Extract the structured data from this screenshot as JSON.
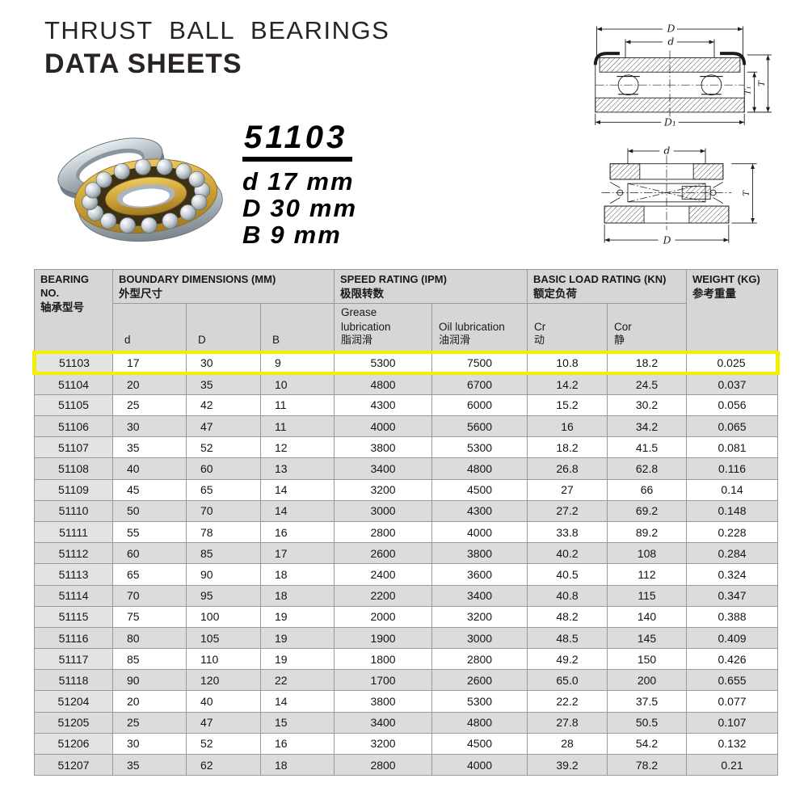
{
  "header": {
    "line1": "THRUST BALL BEARINGS",
    "line2": "DATA SHEETS"
  },
  "product": {
    "model": "51103",
    "dims": [
      {
        "label": "d",
        "value": "17",
        "unit": "mm"
      },
      {
        "label": "D",
        "value": "30",
        "unit": "mm"
      },
      {
        "label": "B",
        "value": "9",
        "unit": "mm"
      }
    ]
  },
  "drawings": {
    "view1": {
      "labels": {
        "D": "D",
        "d": "d",
        "T1": "T₁",
        "T": "T",
        "D1": "D₁"
      }
    },
    "view2": {
      "labels": {
        "d": "d",
        "D": "D",
        "T": "T"
      }
    }
  },
  "table": {
    "header": {
      "bearing_no": {
        "en": "BEARING NO.",
        "zh": "轴承型号"
      },
      "boundary": {
        "en": "BOUNDARY DIMENSIONS (MM)",
        "zh": "外型尺寸",
        "sub": [
          "d",
          "D",
          "B"
        ]
      },
      "speed": {
        "en": "SPEED RATING (IPM)",
        "zh": "极限转数",
        "sub": [
          {
            "en": "Grease lubrication",
            "zh": "脂润滑"
          },
          {
            "en": "Oil lubrication",
            "zh": "油润滑"
          }
        ]
      },
      "load": {
        "en": "BASIC LOAD RATING (KN)",
        "zh": "额定负荷",
        "sub": [
          {
            "en": "Cr",
            "zh": "动"
          },
          {
            "en": "Cor",
            "zh": "静"
          }
        ]
      },
      "weight": {
        "en": "WEIGHT (KG)",
        "zh": "参考重量"
      }
    },
    "highlight_row": "51103",
    "rows": [
      [
        "51103",
        "17",
        "30",
        "9",
        "5300",
        "7500",
        "10.8",
        "18.2",
        "0.025"
      ],
      [
        "51104",
        "20",
        "35",
        "10",
        "4800",
        "6700",
        "14.2",
        "24.5",
        "0.037"
      ],
      [
        "51105",
        "25",
        "42",
        "11",
        "4300",
        "6000",
        "15.2",
        "30.2",
        "0.056"
      ],
      [
        "51106",
        "30",
        "47",
        "11",
        "4000",
        "5600",
        "16",
        "34.2",
        "0.065"
      ],
      [
        "51107",
        "35",
        "52",
        "12",
        "3800",
        "5300",
        "18.2",
        "41.5",
        "0.081"
      ],
      [
        "51108",
        "40",
        "60",
        "13",
        "3400",
        "4800",
        "26.8",
        "62.8",
        "0.116"
      ],
      [
        "51109",
        "45",
        "65",
        "14",
        "3200",
        "4500",
        "27",
        "66",
        "0.14"
      ],
      [
        "51110",
        "50",
        "70",
        "14",
        "3000",
        "4300",
        "27.2",
        "69.2",
        "0.148"
      ],
      [
        "51111",
        "55",
        "78",
        "16",
        "2800",
        "4000",
        "33.8",
        "89.2",
        "0.228"
      ],
      [
        "51112",
        "60",
        "85",
        "17",
        "2600",
        "3800",
        "40.2",
        "108",
        "0.284"
      ],
      [
        "51113",
        "65",
        "90",
        "18",
        "2400",
        "3600",
        "40.5",
        "112",
        "0.324"
      ],
      [
        "51114",
        "70",
        "95",
        "18",
        "2200",
        "3400",
        "40.8",
        "115",
        "0.347"
      ],
      [
        "51115",
        "75",
        "100",
        "19",
        "2000",
        "3200",
        "48.2",
        "140",
        "0.388"
      ],
      [
        "51116",
        "80",
        "105",
        "19",
        "1900",
        "3000",
        "48.5",
        "145",
        "0.409"
      ],
      [
        "51117",
        "85",
        "110",
        "19",
        "1800",
        "2800",
        "49.2",
        "150",
        "0.426"
      ],
      [
        "51118",
        "90",
        "120",
        "22",
        "1700",
        "2600",
        "65.0",
        "200",
        "0.655"
      ],
      [
        "51204",
        "20",
        "40",
        "14",
        "3800",
        "5300",
        "22.2",
        "37.5",
        "0.077"
      ],
      [
        "51205",
        "25",
        "47",
        "15",
        "3400",
        "4800",
        "27.8",
        "50.5",
        "0.107"
      ],
      [
        "51206",
        "30",
        "52",
        "16",
        "3200",
        "4500",
        "28",
        "54.2",
        "0.132"
      ],
      [
        "51207",
        "35",
        "62",
        "18",
        "2800",
        "4000",
        "39.2",
        "78.2",
        "0.21"
      ]
    ]
  },
  "colors": {
    "highlight_yellow": "#f3ef00",
    "header_grey": "#d6d6d6",
    "row_grey": "#dcdcdc",
    "col1_grey": "#e3e3e3",
    "cage_gold": "#cda236",
    "steel_grey": "#aab4bc"
  }
}
